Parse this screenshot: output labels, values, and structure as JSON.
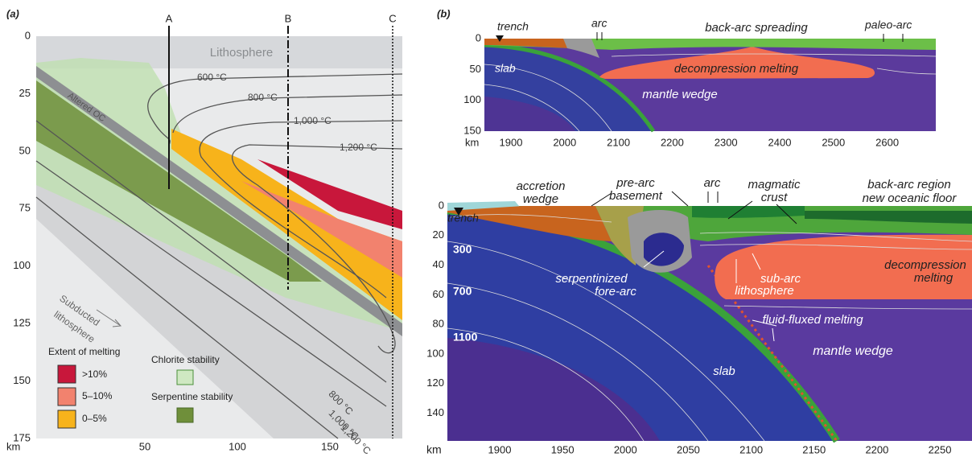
{
  "panel_a": {
    "label": "(a)",
    "sections": [
      "A",
      "B",
      "C"
    ],
    "lithosphere": "Lithosphere",
    "altered_crust": "Altered OC",
    "subducted": [
      "Subducted",
      "lithosphere"
    ],
    "isotherms_upper": [
      "600 °C",
      "800 °C",
      "1,000 °C",
      "1,200 °C"
    ],
    "isotherms_lower": [
      "800 °C",
      "1,000 °C",
      "1,200 °C"
    ],
    "depth_ticks": [
      0,
      25,
      50,
      75,
      100,
      125,
      150,
      175
    ],
    "distance_ticks": [
      50,
      100,
      150
    ],
    "unit": "km",
    "legend": {
      "title": "Extent of melting",
      "melting": [
        ">10%",
        "5–10%",
        "0–5%"
      ],
      "chlorite": "Chlorite stability",
      "serpentine": "Serpentine stability"
    }
  },
  "panel_b": {
    "label": "(b)",
    "top": {
      "trench": "trench",
      "arc": "arc",
      "back_arc": "back-arc spreading",
      "paleo_arc": "paleo-arc",
      "slab": "slab",
      "decompression": "decompression melting",
      "mantle_wedge": "mantle wedge",
      "depth_ticks": [
        0,
        50,
        100,
        150
      ],
      "distance_ticks": [
        1900,
        2000,
        2100,
        2200,
        2300,
        2400,
        2500,
        2600
      ],
      "unit": "km"
    },
    "bottom": {
      "trench": "trench",
      "accretion_wedge": [
        "accretion",
        "wedge"
      ],
      "pre_arc": [
        "pre-arc",
        "basement"
      ],
      "arc": "arc",
      "magmatic_crust": [
        "magmatic",
        "crust"
      ],
      "back_arc": [
        "back-arc region",
        "new oceanic floor"
      ],
      "decompression": [
        "decompression",
        "melting"
      ],
      "sub_arc": [
        "sub-arc",
        "lithosphere"
      ],
      "serpentinized": [
        "serpentinized",
        "fore-arc"
      ],
      "fluid_fluxed": "fluid-fluxed melting",
      "mantle_wedge": "mantle wedge",
      "slab": "slab",
      "isotherms": [
        "300",
        "700",
        "1100"
      ],
      "depth_ticks": [
        0,
        20,
        40,
        60,
        80,
        100,
        120,
        140
      ],
      "distance_ticks": [
        1900,
        1950,
        2000,
        2050,
        2100,
        2150,
        2200,
        2250
      ],
      "unit": "km"
    }
  }
}
